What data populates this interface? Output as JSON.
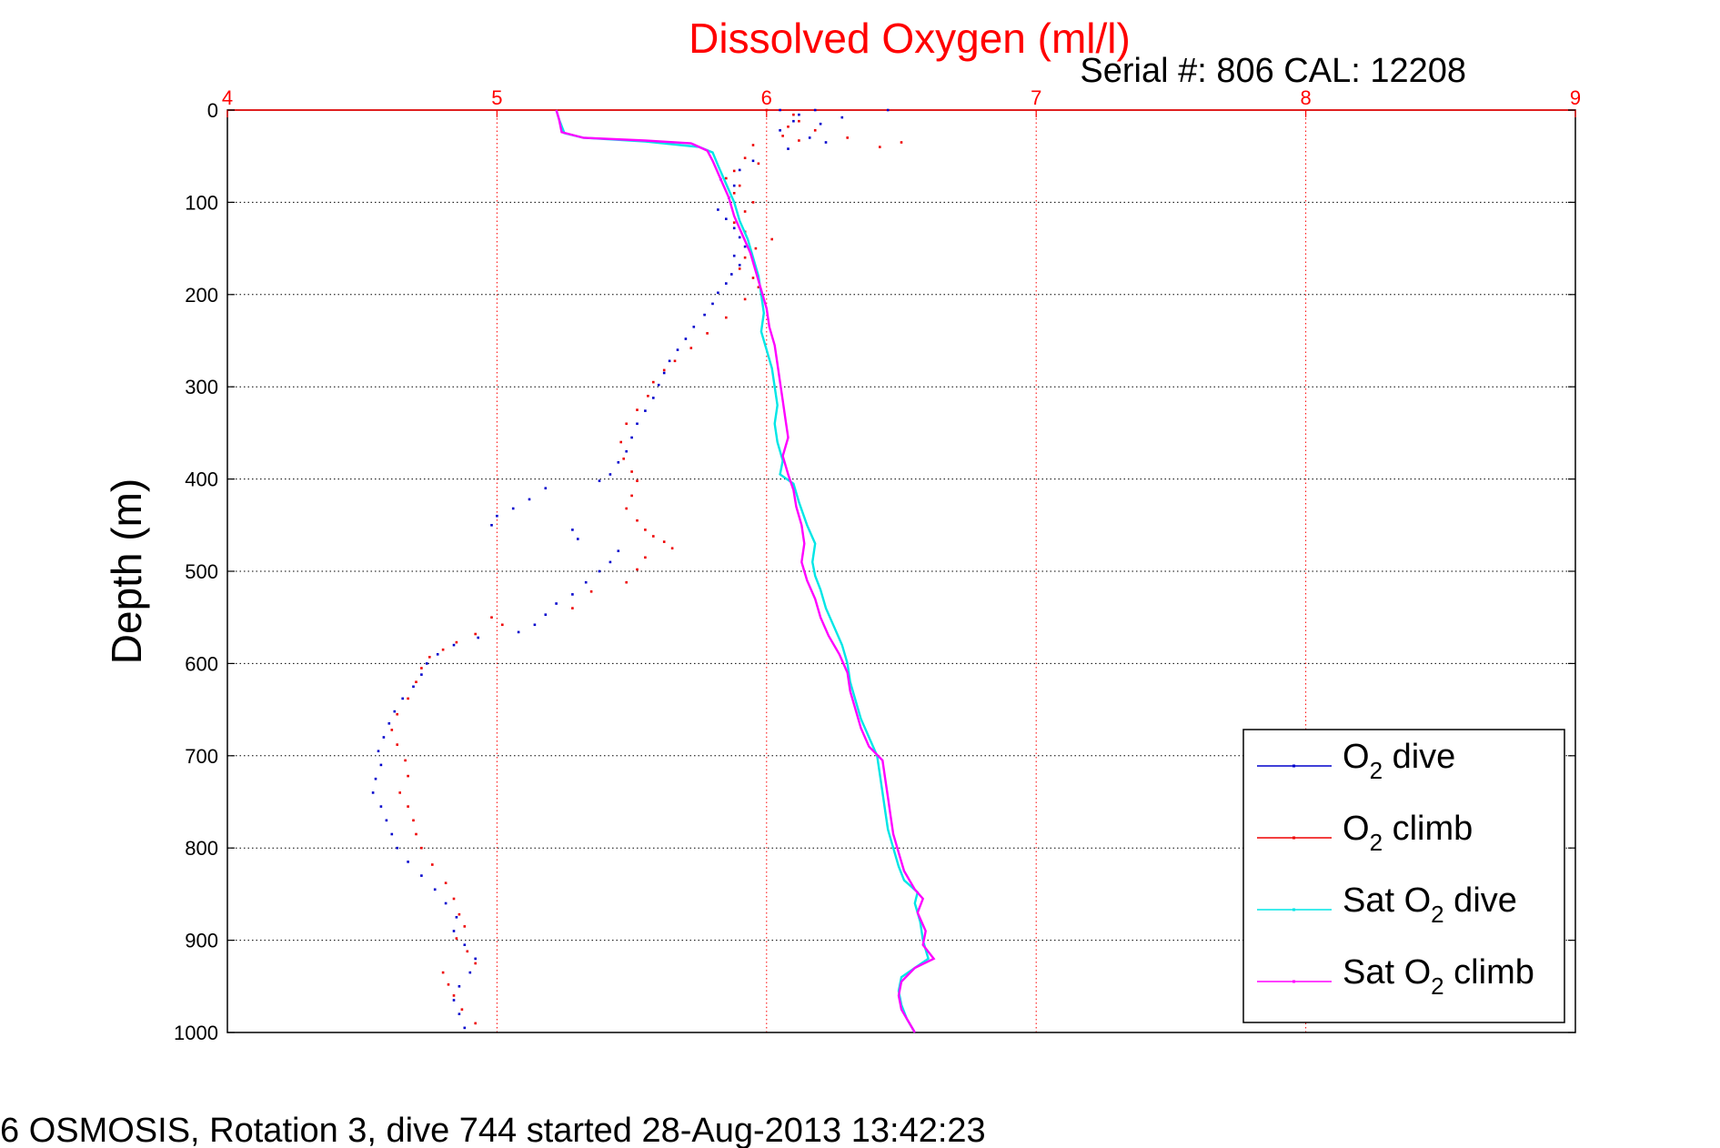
{
  "chart_data": {
    "type": "scatter",
    "title": "Dissolved Oxygen (ml/l)",
    "subtitle": "Serial #: 806  CAL: 12208",
    "ylabel": "Depth (m)",
    "xlabel": "",
    "xlim": [
      4,
      9
    ],
    "ylim": [
      0,
      1000
    ],
    "y_reversed": true,
    "x_axis_position": "top",
    "x_ticks": [
      "4",
      "5",
      "6",
      "7",
      "8",
      "9"
    ],
    "y_ticks": [
      "0",
      "100",
      "200",
      "300",
      "400",
      "500",
      "600",
      "700",
      "800",
      "900",
      "1000"
    ],
    "grid": true,
    "legend_position": "bottom-right",
    "footer": "6 OSMOSIS, Rotation 3, dive 744 started 28-Aug-2013 13:42:23",
    "series": [
      {
        "name": "O2 dive",
        "label_main": "O",
        "label_sub": "2",
        "label_rest": " dive",
        "color": "#0000cc",
        "style": "dots",
        "points": [
          [
            6.05,
            0
          ],
          [
            6.18,
            0
          ],
          [
            6.45,
            0
          ],
          [
            6.12,
            5
          ],
          [
            6.28,
            8
          ],
          [
            6.1,
            12
          ],
          [
            6.2,
            15
          ],
          [
            6.05,
            22
          ],
          [
            6.16,
            30
          ],
          [
            6.22,
            35
          ],
          [
            6.08,
            42
          ],
          [
            5.95,
            55
          ],
          [
            5.9,
            65
          ],
          [
            5.83,
            75
          ],
          [
            5.88,
            82
          ],
          [
            5.86,
            95
          ],
          [
            5.82,
            108
          ],
          [
            5.85,
            118
          ],
          [
            5.88,
            128
          ],
          [
            5.9,
            138
          ],
          [
            5.92,
            148
          ],
          [
            5.88,
            158
          ],
          [
            5.9,
            168
          ],
          [
            5.87,
            178
          ],
          [
            5.85,
            188
          ],
          [
            5.82,
            198
          ],
          [
            5.8,
            210
          ],
          [
            5.77,
            222
          ],
          [
            5.73,
            235
          ],
          [
            5.7,
            248
          ],
          [
            5.67,
            260
          ],
          [
            5.64,
            272
          ],
          [
            5.62,
            285
          ],
          [
            5.6,
            298
          ],
          [
            5.58,
            312
          ],
          [
            5.55,
            326
          ],
          [
            5.52,
            340
          ],
          [
            5.5,
            355
          ],
          [
            5.48,
            370
          ],
          [
            5.45,
            382
          ],
          [
            5.42,
            395
          ],
          [
            5.38,
            402
          ],
          [
            5.18,
            410
          ],
          [
            5.12,
            422
          ],
          [
            5.06,
            432
          ],
          [
            5.0,
            440
          ],
          [
            4.98,
            450
          ],
          [
            5.28,
            455
          ],
          [
            5.3,
            465
          ],
          [
            5.45,
            478
          ],
          [
            5.42,
            490
          ],
          [
            5.38,
            500
          ],
          [
            5.33,
            512
          ],
          [
            5.28,
            525
          ],
          [
            5.22,
            535
          ],
          [
            5.18,
            547
          ],
          [
            5.14,
            558
          ],
          [
            5.08,
            566
          ],
          [
            4.93,
            572
          ],
          [
            4.84,
            580
          ],
          [
            4.78,
            590
          ],
          [
            4.74,
            600
          ],
          [
            4.72,
            612
          ],
          [
            4.69,
            625
          ],
          [
            4.65,
            638
          ],
          [
            4.62,
            652
          ],
          [
            4.6,
            665
          ],
          [
            4.58,
            680
          ],
          [
            4.56,
            695
          ],
          [
            4.57,
            710
          ],
          [
            4.55,
            725
          ],
          [
            4.54,
            740
          ],
          [
            4.57,
            755
          ],
          [
            4.59,
            770
          ],
          [
            4.61,
            785
          ],
          [
            4.63,
            800
          ],
          [
            4.67,
            815
          ],
          [
            4.72,
            830
          ],
          [
            4.77,
            845
          ],
          [
            4.81,
            860
          ],
          [
            4.85,
            875
          ],
          [
            4.84,
            890
          ],
          [
            4.88,
            905
          ],
          [
            4.92,
            920
          ],
          [
            4.9,
            935
          ],
          [
            4.86,
            950
          ],
          [
            4.84,
            965
          ],
          [
            4.86,
            980
          ],
          [
            4.88,
            995
          ]
        ]
      },
      {
        "name": "O2 climb",
        "label_main": "O",
        "label_sub": "2",
        "label_rest": " climb",
        "color": "#ee0000",
        "style": "dots",
        "points": [
          [
            6.0,
            0
          ],
          [
            6.1,
            5
          ],
          [
            6.12,
            12
          ],
          [
            6.08,
            18
          ],
          [
            6.18,
            22
          ],
          [
            6.06,
            28
          ],
          [
            6.12,
            33
          ],
          [
            6.3,
            30
          ],
          [
            6.5,
            35
          ],
          [
            6.42,
            40
          ],
          [
            5.95,
            38
          ],
          [
            5.92,
            52
          ],
          [
            5.97,
            58
          ],
          [
            5.88,
            66
          ],
          [
            5.85,
            74
          ],
          [
            5.9,
            82
          ],
          [
            5.88,
            90
          ],
          [
            5.95,
            100
          ],
          [
            5.92,
            110
          ],
          [
            5.88,
            122
          ],
          [
            5.92,
            132
          ],
          [
            6.02,
            140
          ],
          [
            5.96,
            150
          ],
          [
            5.92,
            160
          ],
          [
            5.9,
            172
          ],
          [
            5.95,
            182
          ],
          [
            5.97,
            192
          ],
          [
            5.92,
            205
          ],
          [
            5.85,
            225
          ],
          [
            5.78,
            242
          ],
          [
            5.72,
            258
          ],
          [
            5.66,
            272
          ],
          [
            5.62,
            282
          ],
          [
            5.58,
            295
          ],
          [
            5.56,
            310
          ],
          [
            5.52,
            325
          ],
          [
            5.48,
            340
          ],
          [
            5.46,
            360
          ],
          [
            5.47,
            378
          ],
          [
            5.5,
            392
          ],
          [
            5.52,
            402
          ],
          [
            5.5,
            418
          ],
          [
            5.48,
            432
          ],
          [
            5.52,
            445
          ],
          [
            5.55,
            455
          ],
          [
            5.58,
            462
          ],
          [
            5.62,
            468
          ],
          [
            5.65,
            475
          ],
          [
            5.55,
            485
          ],
          [
            5.52,
            498
          ],
          [
            5.48,
            512
          ],
          [
            5.35,
            522
          ],
          [
            5.28,
            540
          ],
          [
            4.98,
            550
          ],
          [
            5.02,
            558
          ],
          [
            4.92,
            568
          ],
          [
            4.85,
            577
          ],
          [
            4.8,
            585
          ],
          [
            4.75,
            593
          ],
          [
            4.72,
            605
          ],
          [
            4.7,
            620
          ],
          [
            4.67,
            638
          ],
          [
            4.63,
            655
          ],
          [
            4.61,
            672
          ],
          [
            4.63,
            688
          ],
          [
            4.66,
            705
          ],
          [
            4.67,
            722
          ],
          [
            4.64,
            740
          ],
          [
            4.67,
            755
          ],
          [
            4.69,
            770
          ],
          [
            4.7,
            785
          ],
          [
            4.72,
            800
          ],
          [
            4.76,
            818
          ],
          [
            4.81,
            838
          ],
          [
            4.84,
            855
          ],
          [
            4.86,
            872
          ],
          [
            4.88,
            885
          ],
          [
            4.85,
            898
          ],
          [
            4.89,
            912
          ],
          [
            4.92,
            925
          ],
          [
            4.8,
            935
          ],
          [
            4.82,
            948
          ],
          [
            4.84,
            960
          ],
          [
            4.87,
            975
          ],
          [
            4.92,
            990
          ]
        ]
      },
      {
        "name": "Sat O2 dive",
        "label_main": "Sat O",
        "label_sub": "2",
        "label_rest": " dive",
        "color": "#00e6e6",
        "style": "line",
        "points": [
          [
            5.22,
            0
          ],
          [
            5.23,
            10
          ],
          [
            5.25,
            25
          ],
          [
            5.32,
            30
          ],
          [
            5.55,
            34
          ],
          [
            5.75,
            40
          ],
          [
            5.8,
            46
          ],
          [
            5.82,
            60
          ],
          [
            5.85,
            80
          ],
          [
            5.88,
            100
          ],
          [
            5.9,
            120
          ],
          [
            5.93,
            140
          ],
          [
            5.95,
            160
          ],
          [
            5.97,
            180
          ],
          [
            5.98,
            200
          ],
          [
            5.99,
            220
          ],
          [
            5.98,
            240
          ],
          [
            6.0,
            260
          ],
          [
            6.02,
            280
          ],
          [
            6.03,
            300
          ],
          [
            6.04,
            320
          ],
          [
            6.03,
            340
          ],
          [
            6.04,
            360
          ],
          [
            6.06,
            380
          ],
          [
            6.05,
            395
          ],
          [
            6.1,
            405
          ],
          [
            6.12,
            425
          ],
          [
            6.15,
            450
          ],
          [
            6.18,
            470
          ],
          [
            6.17,
            490
          ],
          [
            6.18,
            505
          ],
          [
            6.2,
            520
          ],
          [
            6.22,
            540
          ],
          [
            6.25,
            560
          ],
          [
            6.28,
            580
          ],
          [
            6.3,
            600
          ],
          [
            6.31,
            620
          ],
          [
            6.33,
            640
          ],
          [
            6.35,
            660
          ],
          [
            6.38,
            680
          ],
          [
            6.41,
            700
          ],
          [
            6.42,
            720
          ],
          [
            6.43,
            740
          ],
          [
            6.44,
            760
          ],
          [
            6.45,
            780
          ],
          [
            6.47,
            800
          ],
          [
            6.49,
            820
          ],
          [
            6.51,
            835
          ],
          [
            6.56,
            848
          ],
          [
            6.55,
            860
          ],
          [
            6.57,
            880
          ],
          [
            6.58,
            900
          ],
          [
            6.6,
            920
          ],
          [
            6.55,
            930
          ],
          [
            6.5,
            940
          ],
          [
            6.49,
            955
          ],
          [
            6.5,
            970
          ],
          [
            6.52,
            985
          ],
          [
            6.55,
            1000
          ]
        ]
      },
      {
        "name": "Sat O2 climb",
        "label_main": "Sat O",
        "label_sub": "2",
        "label_rest": " climb",
        "color": "#ff00ff",
        "style": "line",
        "points": [
          [
            5.22,
            0
          ],
          [
            5.23,
            10
          ],
          [
            5.24,
            24
          ],
          [
            5.32,
            30
          ],
          [
            5.55,
            33
          ],
          [
            5.72,
            36
          ],
          [
            5.78,
            44
          ],
          [
            5.8,
            55
          ],
          [
            5.83,
            75
          ],
          [
            5.86,
            95
          ],
          [
            5.88,
            115
          ],
          [
            5.91,
            135
          ],
          [
            5.94,
            155
          ],
          [
            5.96,
            175
          ],
          [
            5.98,
            195
          ],
          [
            6.0,
            215
          ],
          [
            6.01,
            235
          ],
          [
            6.03,
            255
          ],
          [
            6.04,
            275
          ],
          [
            6.05,
            295
          ],
          [
            6.06,
            315
          ],
          [
            6.07,
            335
          ],
          [
            6.08,
            355
          ],
          [
            6.06,
            375
          ],
          [
            6.08,
            395
          ],
          [
            6.1,
            412
          ],
          [
            6.11,
            430
          ],
          [
            6.13,
            450
          ],
          [
            6.14,
            470
          ],
          [
            6.13,
            490
          ],
          [
            6.15,
            510
          ],
          [
            6.18,
            530
          ],
          [
            6.2,
            550
          ],
          [
            6.23,
            570
          ],
          [
            6.27,
            590
          ],
          [
            6.3,
            610
          ],
          [
            6.31,
            630
          ],
          [
            6.33,
            650
          ],
          [
            6.35,
            670
          ],
          [
            6.38,
            690
          ],
          [
            6.43,
            705
          ],
          [
            6.44,
            725
          ],
          [
            6.45,
            745
          ],
          [
            6.46,
            765
          ],
          [
            6.47,
            785
          ],
          [
            6.49,
            805
          ],
          [
            6.51,
            825
          ],
          [
            6.55,
            845
          ],
          [
            6.58,
            855
          ],
          [
            6.56,
            870
          ],
          [
            6.59,
            890
          ],
          [
            6.58,
            905
          ],
          [
            6.62,
            920
          ],
          [
            6.55,
            930
          ],
          [
            6.5,
            945
          ],
          [
            6.49,
            960
          ],
          [
            6.5,
            975
          ],
          [
            6.53,
            990
          ],
          [
            6.55,
            1000
          ]
        ]
      }
    ]
  }
}
